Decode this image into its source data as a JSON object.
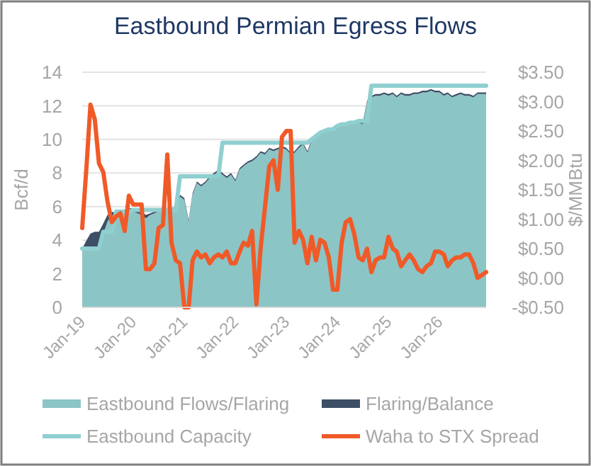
{
  "chart_data": {
    "type": "area",
    "title": "Eastbound Permian Egress Flows",
    "ylabel": "Bcf/d",
    "y2label": "$/MMBtu",
    "stacked": true,
    "grid": "y",
    "legend": "bottom",
    "x": [
      "2019-01",
      "2019-02",
      "2019-03",
      "2019-04",
      "2019-05",
      "2019-06",
      "2019-07",
      "2019-08",
      "2019-09",
      "2019-10",
      "2019-11",
      "2019-12",
      "2020-01",
      "2020-02",
      "2020-03",
      "2020-04",
      "2020-05",
      "2020-06",
      "2020-07",
      "2020-08",
      "2020-09",
      "2020-10",
      "2020-11",
      "2020-12",
      "2021-01",
      "2021-02",
      "2021-03",
      "2021-04",
      "2021-05",
      "2021-06",
      "2021-07",
      "2021-08",
      "2021-09",
      "2021-10",
      "2021-11",
      "2021-12",
      "2022-01",
      "2022-02",
      "2022-03",
      "2022-04",
      "2022-05",
      "2022-06",
      "2022-07",
      "2022-08",
      "2022-09",
      "2022-10",
      "2022-11",
      "2022-12",
      "2023-01",
      "2023-02",
      "2023-03",
      "2023-04",
      "2023-05",
      "2023-06",
      "2023-07",
      "2023-08",
      "2023-09",
      "2023-10",
      "2023-11",
      "2023-12",
      "2024-01",
      "2024-02",
      "2024-03",
      "2024-04",
      "2024-05",
      "2024-06",
      "2024-07",
      "2024-08",
      "2024-09",
      "2024-10",
      "2024-11",
      "2024-12",
      "2025-01",
      "2025-02",
      "2025-03",
      "2025-04",
      "2025-05",
      "2025-06",
      "2025-07",
      "2025-08",
      "2025-09",
      "2025-10",
      "2025-11",
      "2025-12",
      "2026-01",
      "2026-02",
      "2026-03",
      "2026-04",
      "2026-05",
      "2026-06",
      "2026-07",
      "2026-08",
      "2026-09",
      "2026-10",
      "2026-11",
      "2026-12"
    ],
    "xlim": [
      "2019-01",
      "2026-12"
    ],
    "xticks": [
      {
        "value": "2019-01",
        "label": "Jan-19"
      },
      {
        "value": "2020-01",
        "label": "Jan-20"
      },
      {
        "value": "2021-01",
        "label": "Jan-21"
      },
      {
        "value": "2022-01",
        "label": "Jan-22"
      },
      {
        "value": "2023-01",
        "label": "Jan-23"
      },
      {
        "value": "2024-01",
        "label": "Jan-24"
      },
      {
        "value": "2025-01",
        "label": "Jan-25"
      },
      {
        "value": "2026-01",
        "label": "Jan-26"
      }
    ],
    "ylim": [
      0,
      14
    ],
    "yticks": [
      0,
      2,
      4,
      6,
      8,
      10,
      12,
      14
    ],
    "y2lim": [
      -0.5,
      3.5
    ],
    "y2ticks": [
      {
        "value": -0.5,
        "label": "-$0.50"
      },
      {
        "value": 0,
        "label": "$0.00"
      },
      {
        "value": 0.5,
        "label": "$0.50"
      },
      {
        "value": 1,
        "label": "$1.00"
      },
      {
        "value": 1.5,
        "label": "$1.50"
      },
      {
        "value": 2,
        "label": "$2.00"
      },
      {
        "value": 2.5,
        "label": "$2.50"
      },
      {
        "value": 3,
        "label": "$3.00"
      },
      {
        "value": 3.5,
        "label": "$3.50"
      }
    ],
    "series": [
      {
        "name": "Eastbound Flows/Flaring",
        "color": "#8cc5c6",
        "values": [
          3.5,
          3.5,
          3.5,
          3.6,
          3.6,
          4.4,
          5.1,
          5.5,
          5.4,
          5.6,
          5.6,
          5.7,
          5.7,
          5.6,
          5.5,
          5.3,
          5.5,
          5.6,
          5.7,
          5.7,
          5.7,
          5.8,
          5.9,
          6.6,
          6.4,
          5.1,
          6.7,
          7.4,
          7.2,
          7.4,
          7.7,
          7.9,
          8.1,
          7.9,
          7.7,
          7.9,
          7.5,
          8.2,
          8.4,
          8.6,
          8.7,
          8.9,
          9.2,
          9.1,
          9.4,
          9.3,
          9.4,
          9.5,
          9.4,
          9.1,
          9.2,
          9.5,
          9.7,
          9.2,
          9.9,
          10.1,
          10.3,
          10.4,
          10.5,
          10.5,
          10.7,
          10.8,
          10.8,
          10.9,
          10.9,
          11.0,
          10.9,
          12.2,
          12.5,
          12.6,
          12.6,
          12.7,
          12.6,
          12.7,
          12.5,
          12.7,
          12.6,
          12.6,
          12.7,
          12.7,
          12.8,
          12.8,
          12.9,
          12.8,
          12.8,
          12.6,
          12.7,
          12.5,
          12.6,
          12.7,
          12.6,
          12.6,
          12.5,
          12.7,
          12.7,
          12.7
        ]
      },
      {
        "name": "Flaring/Balance",
        "color": "#3d4f66",
        "values": [
          0,
          0.5,
          0.9,
          0.9,
          0.9,
          0.6,
          0.4,
          0.2,
          0.2,
          0.2,
          0.2,
          0.2,
          0.2,
          0.2,
          0.2,
          0.2,
          0.1,
          0.1,
          0.1,
          0.1,
          0.1,
          0.1,
          0.1,
          0.1,
          0.1,
          0.1,
          0.1,
          0.1,
          0.1,
          0.1,
          0.1,
          0.1,
          0.1,
          0.1,
          0.1,
          0.1,
          0.1,
          0.1,
          0.1,
          0.1,
          0.1,
          0.1,
          0.1,
          0.1,
          0.1,
          0.1,
          0.1,
          0.1,
          0.1,
          0.1,
          0.1,
          0.1,
          0.1,
          0.1,
          0.1,
          0.1,
          0.1,
          0.1,
          0.1,
          0.1,
          0.1,
          0.1,
          0.1,
          0.1,
          0.1,
          0.1,
          0.1,
          0.1,
          0.1,
          0.1,
          0.1,
          0.1,
          0.1,
          0.1,
          0.1,
          0.1,
          0.1,
          0.1,
          0.1,
          0.1,
          0.1,
          0.1,
          0.1,
          0.1,
          0.1,
          0.1,
          0.1,
          0.1,
          0.1,
          0.1,
          0.1,
          0.1,
          0.1,
          0.1,
          0.1,
          0.1
        ]
      },
      {
        "name": "Eastbound Capacity",
        "type": "line",
        "color": "#8fcfd0",
        "values": [
          3.5,
          3.5,
          3.5,
          3.5,
          3.5,
          4.5,
          4.5,
          4.5,
          5.7,
          5.7,
          5.7,
          5.7,
          5.8,
          5.8,
          5.8,
          5.8,
          5.8,
          5.8,
          5.8,
          5.8,
          5.8,
          5.8,
          5.8,
          7.8,
          7.8,
          7.8,
          7.8,
          7.8,
          7.8,
          7.8,
          7.8,
          7.8,
          7.8,
          9.8,
          9.8,
          9.8,
          9.8,
          9.8,
          9.8,
          9.8,
          9.8,
          9.8,
          9.8,
          9.8,
          9.8,
          9.8,
          9.8,
          9.8,
          9.8,
          9.8,
          9.8,
          9.8,
          9.8,
          9.8,
          10.0,
          10.2,
          10.4,
          10.5,
          10.6,
          10.6,
          10.8,
          10.9,
          10.9,
          11.0,
          11.0,
          11.1,
          11.1,
          11.1,
          13.2,
          13.2,
          13.2,
          13.2,
          13.2,
          13.2,
          13.2,
          13.2,
          13.2,
          13.2,
          13.2,
          13.2,
          13.2,
          13.2,
          13.2,
          13.2,
          13.2,
          13.2,
          13.2,
          13.2,
          13.2,
          13.2,
          13.2,
          13.2,
          13.2,
          13.2,
          13.2,
          13.2
        ]
      },
      {
        "name": "Waha to STX Spread",
        "type": "line",
        "axis": "y2",
        "color": "#f05a28",
        "values": [
          0.85,
          1.9,
          2.95,
          2.7,
          1.95,
          1.8,
          1.3,
          0.95,
          1.05,
          1.1,
          0.8,
          1.4,
          1.25,
          1.25,
          1.25,
          0.15,
          0.15,
          0.25,
          0.85,
          0.9,
          2.1,
          0.6,
          0.3,
          0.25,
          -0.5,
          -0.5,
          0.3,
          0.45,
          0.35,
          0.4,
          0.25,
          0.35,
          0.4,
          0.35,
          0.45,
          0.25,
          0.25,
          0.45,
          0.6,
          0.55,
          0.8,
          -0.45,
          0.5,
          1.2,
          1.9,
          2.0,
          1.5,
          2.4,
          2.5,
          2.5,
          0.6,
          0.8,
          0.65,
          0.25,
          0.7,
          0.3,
          0.65,
          0.6,
          0.35,
          -0.2,
          -0.2,
          0.6,
          0.95,
          1.0,
          0.75,
          0.35,
          0.3,
          0.5,
          0.1,
          0.3,
          0.35,
          0.35,
          0.7,
          0.5,
          0.45,
          0.2,
          0.3,
          0.4,
          0.3,
          0.15,
          0.1,
          0.2,
          0.25,
          0.45,
          0.45,
          0.4,
          0.2,
          0.3,
          0.35,
          0.35,
          0.4,
          0.4,
          0.25,
          0.0,
          0.05,
          0.1
        ]
      }
    ]
  }
}
